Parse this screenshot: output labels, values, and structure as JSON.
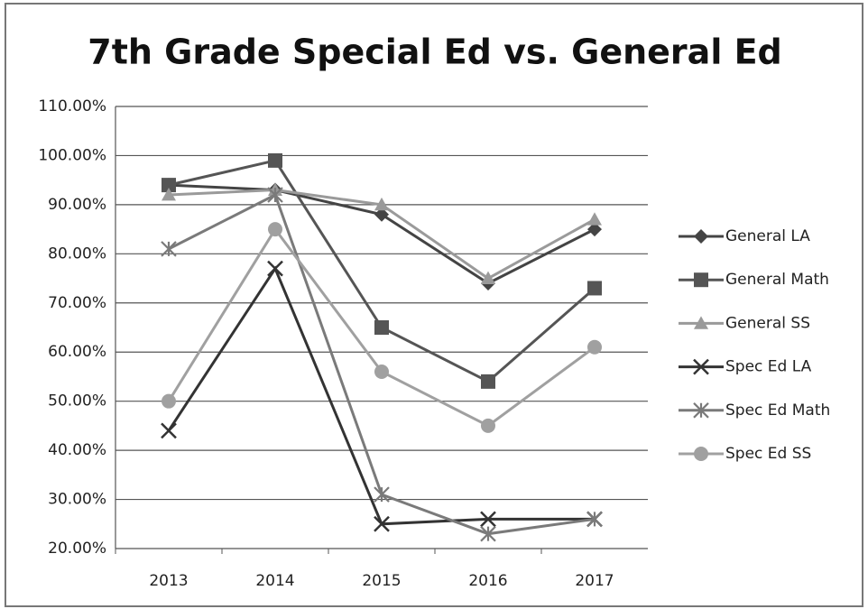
{
  "chart_data": {
    "type": "line",
    "title": "7th Grade Special Ed vs. General Ed",
    "categories": [
      "2013",
      "2014",
      "2015",
      "2016",
      "2017"
    ],
    "series": [
      {
        "name": "General LA",
        "color": "#444444",
        "marker": "diamond",
        "values": [
          94,
          93,
          88,
          74,
          85
        ]
      },
      {
        "name": "General Math",
        "color": "#555555",
        "marker": "square",
        "values": [
          94,
          99,
          65,
          54,
          73
        ]
      },
      {
        "name": "General SS",
        "color": "#9a9a9a",
        "marker": "triangle",
        "values": [
          92,
          93,
          90,
          75,
          87
        ]
      },
      {
        "name": "Spec Ed LA",
        "color": "#333333",
        "marker": "x",
        "values": [
          44,
          77,
          25,
          26,
          26
        ]
      },
      {
        "name": "Spec Ed Math",
        "color": "#7a7a7a",
        "marker": "star",
        "values": [
          81,
          92,
          31,
          23,
          26
        ]
      },
      {
        "name": "Spec Ed SS",
        "color": "#a0a0a0",
        "marker": "circle",
        "values": [
          50,
          85,
          56,
          45,
          61
        ]
      }
    ],
    "ylim": [
      20,
      110
    ],
    "yticks": [
      {
        "value": 20,
        "label": "20.00%"
      },
      {
        "value": 30,
        "label": "30.00%"
      },
      {
        "value": 40,
        "label": "40.00%"
      },
      {
        "value": 50,
        "label": "50.00%"
      },
      {
        "value": 60,
        "label": "60.00%"
      },
      {
        "value": 70,
        "label": "70.00%"
      },
      {
        "value": 80,
        "label": "80.00%"
      },
      {
        "value": 90,
        "label": "90.00%"
      },
      {
        "value": 100,
        "label": "100.00%"
      },
      {
        "value": 110,
        "label": "110.00%"
      }
    ],
    "grid": true,
    "legend": "right"
  }
}
